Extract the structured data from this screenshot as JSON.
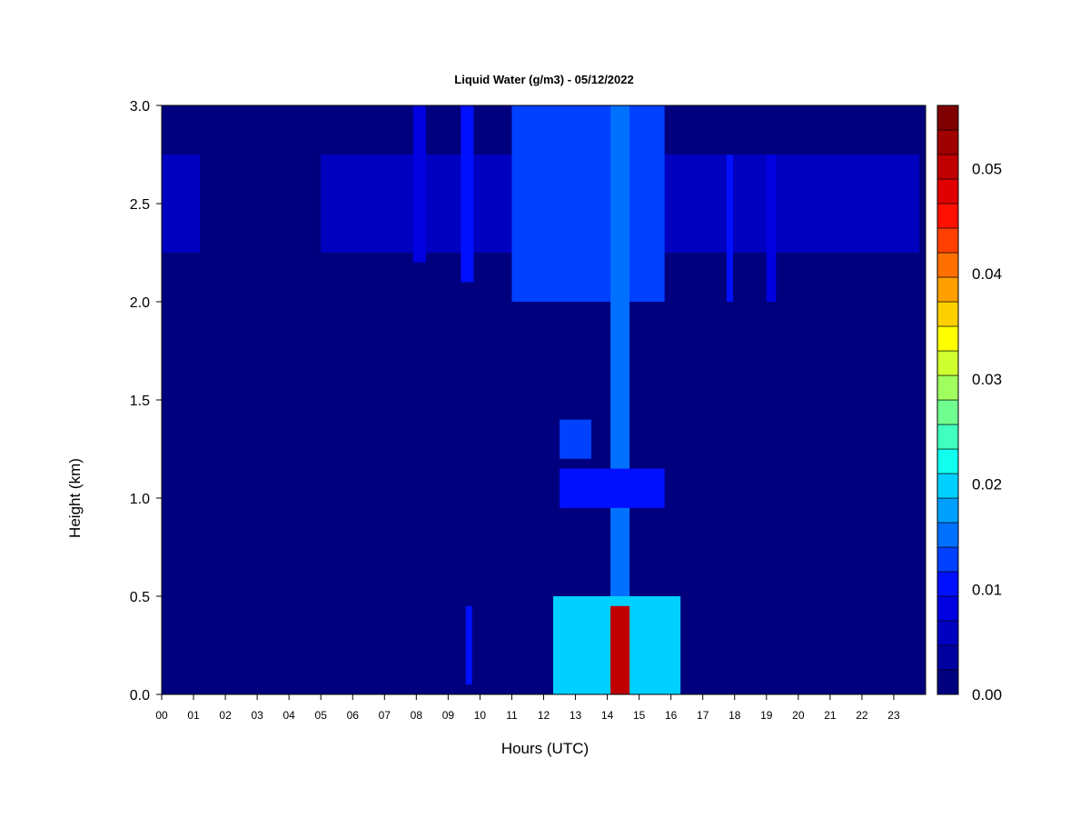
{
  "chart_data": {
    "type": "heatmap",
    "title": "Liquid Water (g/m3) - 05/12/2022",
    "xlabel": "Hours (UTC)",
    "ylabel": "Height (km)",
    "xlim": [
      0,
      24
    ],
    "ylim": [
      0,
      3.0
    ],
    "x_ticks": [
      "00",
      "01",
      "02",
      "03",
      "04",
      "05",
      "06",
      "07",
      "08",
      "09",
      "10",
      "11",
      "12",
      "13",
      "14",
      "15",
      "16",
      "17",
      "18",
      "19",
      "20",
      "21",
      "22",
      "23"
    ],
    "y_ticks": [
      "0.0",
      "0.5",
      "1.0",
      "1.5",
      "2.0",
      "2.5",
      "3.0"
    ],
    "colorbar": {
      "min": 0.0,
      "max": 0.056,
      "levels": 24,
      "tick_labels": [
        "0.00",
        "0.01",
        "0.02",
        "0.03",
        "0.04",
        "0.05"
      ],
      "tick_values": [
        0.0,
        0.01,
        0.02,
        0.03,
        0.04,
        0.05
      ],
      "colors": [
        "#00007f",
        "#0000a0",
        "#0000c0",
        "#0000e0",
        "#0010ff",
        "#0040ff",
        "#0070ff",
        "#00a0ff",
        "#00d0ff",
        "#10ffef",
        "#40ffbf",
        "#70ff8f",
        "#a0ff5f",
        "#d0ff2f",
        "#ffff00",
        "#ffd000",
        "#ffa000",
        "#ff7000",
        "#ff4000",
        "#ff1000",
        "#e00000",
        "#c00000",
        "#a00000",
        "#800000"
      ]
    },
    "background_value": 0.0,
    "features": [
      {
        "name": "upper cloud layer",
        "x_range": [
          0.0,
          23.8
        ],
        "height_range": [
          2.25,
          2.75
        ],
        "value": 0.006
      },
      {
        "name": "upper cloud gap",
        "x_range": [
          1.2,
          5.0
        ],
        "height_range": [
          2.25,
          2.75
        ],
        "value": 0.0
      },
      {
        "name": "upper plume 08",
        "x_range": [
          7.9,
          8.3
        ],
        "height_range": [
          2.2,
          3.0
        ],
        "value": 0.009
      },
      {
        "name": "upper plume 09-10",
        "x_range": [
          9.4,
          9.8
        ],
        "height_range": [
          2.1,
          3.0
        ],
        "value": 0.011
      },
      {
        "name": "upper plume 11-16",
        "x_range": [
          11.0,
          15.8
        ],
        "height_range": [
          2.0,
          3.0
        ],
        "value": 0.012
      },
      {
        "name": "column 14-15",
        "x_range": [
          14.1,
          14.7
        ],
        "height_range": [
          0.0,
          3.0
        ],
        "value": 0.016
      },
      {
        "name": "mid cloud 1.3km",
        "x_range": [
          12.5,
          13.5
        ],
        "height_range": [
          1.2,
          1.4
        ],
        "value": 0.012
      },
      {
        "name": "mid cloud 1.0km",
        "x_range": [
          12.5,
          15.8
        ],
        "height_range": [
          0.95,
          1.15
        ],
        "value": 0.01
      },
      {
        "name": "low cloud",
        "x_range": [
          12.3,
          16.3
        ],
        "height_range": [
          0.0,
          0.5
        ],
        "value": 0.02
      },
      {
        "name": "low cloud core",
        "x_range": [
          14.1,
          14.7
        ],
        "height_range": [
          0.0,
          0.45
        ],
        "value": 0.05
      },
      {
        "name": "low cloud 09-10",
        "x_range": [
          9.55,
          9.75
        ],
        "height_range": [
          0.05,
          0.45
        ],
        "value": 0.01
      },
      {
        "name": "upper streak 18",
        "x_range": [
          17.75,
          17.95
        ],
        "height_range": [
          2.0,
          2.75
        ],
        "value": 0.011
      },
      {
        "name": "upper streak 19",
        "x_range": [
          19.0,
          19.3
        ],
        "height_range": [
          2.0,
          2.75
        ],
        "value": 0.009
      }
    ]
  }
}
